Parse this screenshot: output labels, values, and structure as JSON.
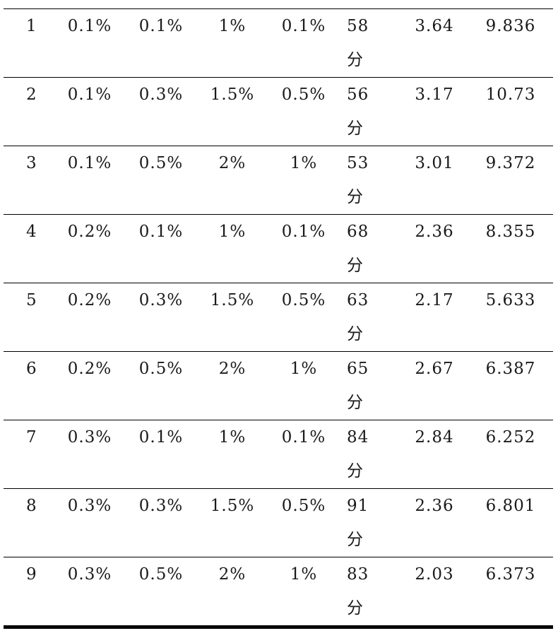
{
  "table": {
    "rows": [
      {
        "id": "1",
        "a": "0.1%",
        "b": "0.1%",
        "c": "1%",
        "d": "0.1%",
        "time": "58",
        "unit": "分",
        "e": "3.64",
        "f": "9.836"
      },
      {
        "id": "2",
        "a": "0.1%",
        "b": "0.3%",
        "c": "1.5%",
        "d": "0.5%",
        "time": "56",
        "unit": "分",
        "e": "3.17",
        "f": "10.73"
      },
      {
        "id": "3",
        "a": "0.1%",
        "b": "0.5%",
        "c": "2%",
        "d": "1%",
        "time": "53",
        "unit": "分",
        "e": "3.01",
        "f": "9.372"
      },
      {
        "id": "4",
        "a": "0.2%",
        "b": "0.1%",
        "c": "1%",
        "d": "0.1%",
        "time": "68",
        "unit": "分",
        "e": "2.36",
        "f": "8.355"
      },
      {
        "id": "5",
        "a": "0.2%",
        "b": "0.3%",
        "c": "1.5%",
        "d": "0.5%",
        "time": "63",
        "unit": "分",
        "e": "2.17",
        "f": "5.633"
      },
      {
        "id": "6",
        "a": "0.2%",
        "b": "0.5%",
        "c": "2%",
        "d": "1%",
        "time": "65",
        "unit": "分",
        "e": "2.67",
        "f": "6.387"
      },
      {
        "id": "7",
        "a": "0.3%",
        "b": "0.1%",
        "c": "1%",
        "d": "0.1%",
        "time": "84",
        "unit": "分",
        "e": "2.84",
        "f": "6.252"
      },
      {
        "id": "8",
        "a": "0.3%",
        "b": "0.3%",
        "c": "1.5%",
        "d": "0.5%",
        "time": "91",
        "unit": "分",
        "e": "2.36",
        "f": "6.801"
      },
      {
        "id": "9",
        "a": "0.3%",
        "b": "0.5%",
        "c": "2%",
        "d": "1%",
        "time": "83",
        "unit": "分",
        "e": "2.03",
        "f": "6.373"
      }
    ]
  }
}
